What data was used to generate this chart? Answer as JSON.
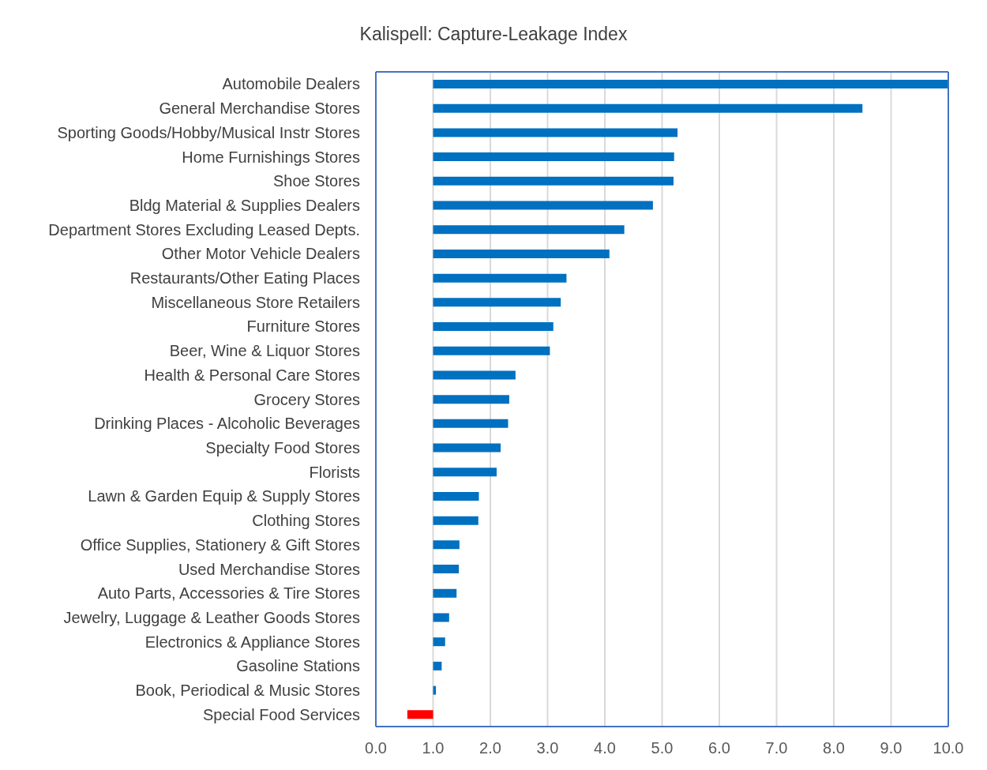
{
  "chart_data": {
    "type": "bar",
    "title": "Kalispell: Capture-Leakage Index",
    "orientation": "horizontal",
    "categories": [
      "Automobile Dealers",
      "General Merchandise Stores",
      "Sporting Goods/Hobby/Musical Instr Stores",
      "Home Furnishings Stores",
      "Shoe Stores",
      "Bldg Material & Supplies Dealers",
      "Department Stores Excluding Leased Depts.",
      "Other Motor Vehicle Dealers",
      "Restaurants/Other Eating Places",
      "Miscellaneous Store Retailers",
      "Furniture Stores",
      "Beer, Wine & Liquor Stores",
      "Health & Personal Care Stores",
      "Grocery Stores",
      "Drinking Places - Alcoholic Beverages",
      "Specialty Food Stores",
      "Florists",
      "Lawn & Garden Equip & Supply Stores",
      "Clothing Stores",
      "Office Supplies, Stationery & Gift Stores",
      "Used Merchandise Stores",
      "Auto Parts, Accessories & Tire Stores",
      "Jewelry, Luggage & Leather Goods Stores",
      "Electronics & Appliance Stores",
      "Gasoline Stations",
      "Book, Periodical & Music Stores",
      "Special Food Services"
    ],
    "base": [
      1,
      1,
      1,
      1,
      1,
      1,
      1,
      1,
      1,
      1,
      1,
      1,
      1,
      1,
      1,
      1,
      1,
      1,
      1,
      1,
      1,
      1,
      1,
      1,
      1,
      1,
      1
    ],
    "values": [
      9.0,
      7.5,
      4.27,
      4.21,
      4.2,
      3.84,
      3.34,
      3.08,
      2.33,
      2.23,
      2.1,
      2.04,
      1.44,
      1.33,
      1.31,
      1.18,
      1.11,
      0.8,
      0.79,
      0.46,
      0.45,
      0.41,
      0.28,
      0.21,
      0.15,
      0.05,
      -0.45
    ],
    "colors": [
      "#0070c0",
      "#0070c0",
      "#0070c0",
      "#0070c0",
      "#0070c0",
      "#0070c0",
      "#0070c0",
      "#0070c0",
      "#0070c0",
      "#0070c0",
      "#0070c0",
      "#0070c0",
      "#0070c0",
      "#0070c0",
      "#0070c0",
      "#0070c0",
      "#0070c0",
      "#0070c0",
      "#0070c0",
      "#0070c0",
      "#0070c0",
      "#0070c0",
      "#0070c0",
      "#0070c0",
      "#0070c0",
      "#0070c0",
      "#ff0000"
    ],
    "xlim": [
      0,
      10
    ],
    "xticks": [
      {
        "value": 0,
        "label": "0.0"
      },
      {
        "value": 1,
        "label": "1.0"
      },
      {
        "value": 2,
        "label": "2.0"
      },
      {
        "value": 3,
        "label": "3.0"
      },
      {
        "value": 4,
        "label": "4.0"
      },
      {
        "value": 5,
        "label": "5.0"
      },
      {
        "value": 6,
        "label": "6.0"
      },
      {
        "value": 7,
        "label": "7.0"
      },
      {
        "value": 8,
        "label": "8.0"
      },
      {
        "value": 9,
        "label": "9.0"
      },
      {
        "value": 10,
        "label": "10.0"
      }
    ],
    "grid": "x"
  }
}
